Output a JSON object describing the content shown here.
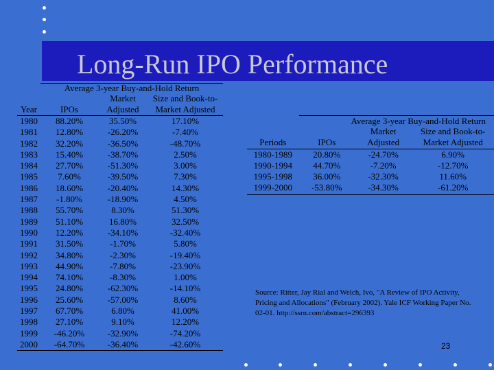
{
  "slide": {
    "title": "Long-Run IPO Performance",
    "page_number": "23",
    "background_color": "#3a6fd1",
    "title_band_color": "#1c1cbc"
  },
  "left_table": {
    "super_header": "Average 3-year Buy-and-Hold Return",
    "headers": {
      "year": "Year",
      "ipos": "IPOs",
      "market_line1": "Market",
      "market_line2": "Adjusted",
      "size_line1": "Size and Book-to-",
      "size_line2": "Market Adjusted"
    },
    "rows": [
      [
        "1980",
        "88.20%",
        "35.50%",
        "17.10%"
      ],
      [
        "1981",
        "12.80%",
        "-26.20%",
        "-7.40%"
      ],
      [
        "1982",
        "32.20%",
        "-36.50%",
        "-48.70%"
      ],
      [
        "1983",
        "15.40%",
        "-38.70%",
        "2.50%"
      ],
      [
        "1984",
        "27.70%",
        "-51.30%",
        "3.00%"
      ],
      [
        "1985",
        "7.60%",
        "-39.50%",
        "7.30%"
      ],
      [
        "1986",
        "18.60%",
        "-20.40%",
        "14.30%"
      ],
      [
        "1987",
        "-1.80%",
        "-18.90%",
        "4.50%"
      ],
      [
        "1988",
        "55.70%",
        "8.30%",
        "51.30%"
      ],
      [
        "1989",
        "51.10%",
        "16.80%",
        "32.50%"
      ],
      [
        "1990",
        "12.20%",
        "-34.10%",
        "-32.40%"
      ],
      [
        "1991",
        "31.50%",
        "-1.70%",
        "5.80%"
      ],
      [
        "1992",
        "34.80%",
        "-2.30%",
        "-19.40%"
      ],
      [
        "1993",
        "44.90%",
        "-7.80%",
        "-23.90%"
      ],
      [
        "1994",
        "74.10%",
        "-8.30%",
        "1.00%"
      ],
      [
        "1995",
        "24.80%",
        "-62.30%",
        "-14.10%"
      ],
      [
        "1996",
        "25.60%",
        "-57.00%",
        "8.60%"
      ],
      [
        "1997",
        "67.70%",
        "6.80%",
        "41.00%"
      ],
      [
        "1998",
        "27.10%",
        "9.10%",
        "12.20%"
      ],
      [
        "1999",
        "-46.20%",
        "-32.90%",
        "-74.20%"
      ],
      [
        "2000",
        "-64.70%",
        "-36.40%",
        "-42.60%"
      ]
    ]
  },
  "right_table": {
    "super_header": "Average 3-year Buy-and-Hold Return",
    "headers": {
      "periods": "Periods",
      "ipos": "IPOs",
      "market_line1": "Market",
      "market_line2": "Adjusted",
      "size_line1": "Size and Book-to-",
      "size_line2": "Market Adjusted"
    },
    "rows": [
      [
        "1980-1989",
        "20.80%",
        "-24.70%",
        "6.90%"
      ],
      [
        "1990-1994",
        "44.70%",
        "-7.20%",
        "-12.70%"
      ],
      [
        "1995-1998",
        "36.00%",
        "-32.30%",
        "11.60%"
      ],
      [
        "1999-2000",
        "-53.80%",
        "-34.30%",
        "-61.20%"
      ]
    ]
  },
  "source": {
    "text": "Source:  Ritter, Jay Rial and Welch, Ivo, \"A Review of IPO Activity, Pricing and Allocations\" (February 2002). Yale ICF Working Paper No. 02-01. http://ssrn.com/abstract=296393"
  }
}
